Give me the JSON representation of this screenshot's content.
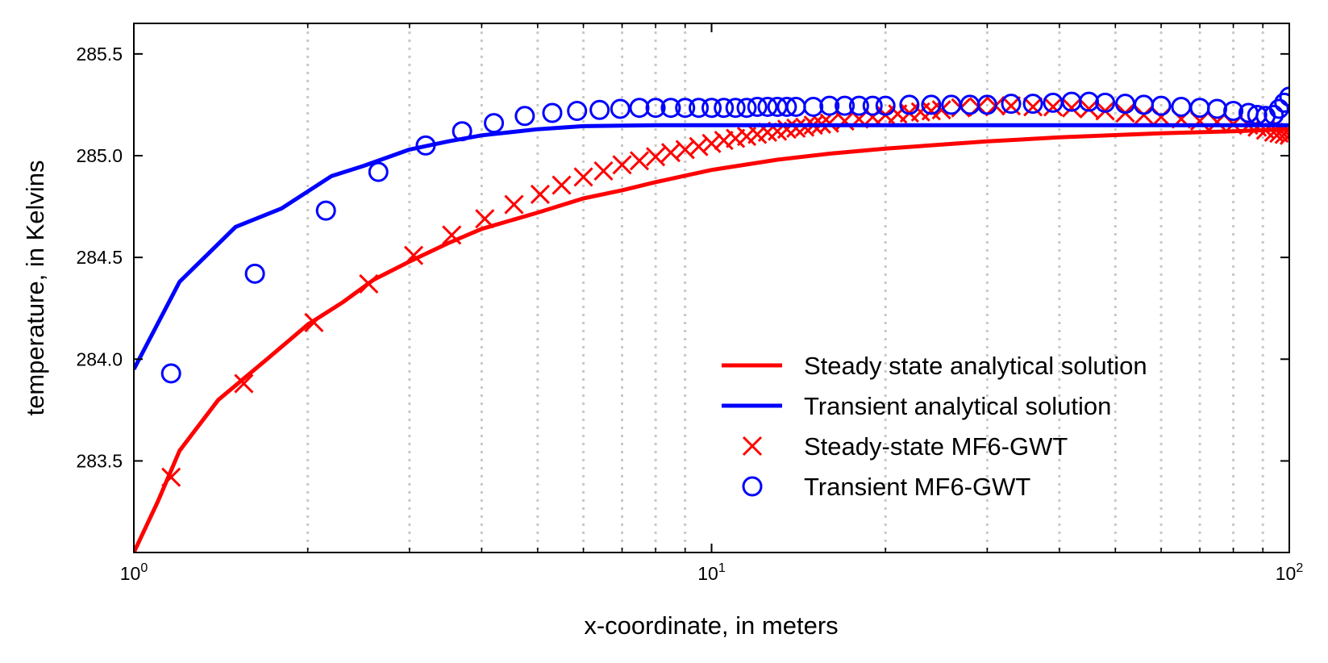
{
  "chart_data": {
    "type": "line",
    "xlabel": "x-coordinate, in meters",
    "ylabel": "temperature, in Kelvins",
    "xscale": "log",
    "xlim": [
      1,
      100
    ],
    "ylim": [
      283.05,
      285.65
    ],
    "grid": "vertical minor dotted",
    "legend_position": "lower-right",
    "x_ticks": [
      {
        "value": 1,
        "base": "10",
        "exp": "0"
      },
      {
        "value": 10,
        "base": "10",
        "exp": "1"
      },
      {
        "value": 100,
        "base": "10",
        "exp": "2"
      }
    ],
    "y_ticks": [
      {
        "value": 283.5,
        "label": "283.5"
      },
      {
        "value": 284.0,
        "label": "284.0"
      },
      {
        "value": 284.5,
        "label": "284.5"
      },
      {
        "value": 285.0,
        "label": "285.0"
      },
      {
        "value": 285.5,
        "label": "285.5"
      }
    ],
    "series": [
      {
        "name": "Steady state analytical solution",
        "kind": "line",
        "color": "#ff0000",
        "points": [
          [
            1.0,
            283.05
          ],
          [
            1.1,
            283.3
          ],
          [
            1.2,
            283.55
          ],
          [
            1.4,
            283.8
          ],
          [
            1.7,
            284.0
          ],
          [
            2.0,
            284.17
          ],
          [
            2.3,
            284.28
          ],
          [
            2.6,
            284.39
          ],
          [
            3.0,
            284.48
          ],
          [
            3.5,
            284.57
          ],
          [
            4.0,
            284.64
          ],
          [
            5.0,
            284.72
          ],
          [
            6.0,
            284.79
          ],
          [
            7.0,
            284.83
          ],
          [
            8.0,
            284.87
          ],
          [
            10.0,
            284.93
          ],
          [
            13.0,
            284.98
          ],
          [
            16.0,
            285.01
          ],
          [
            20.0,
            285.035
          ],
          [
            30.0,
            285.07
          ],
          [
            40.0,
            285.09
          ],
          [
            60.0,
            285.11
          ],
          [
            80.0,
            285.12
          ],
          [
            100.0,
            285.13
          ]
        ]
      },
      {
        "name": "Transient analytical solution",
        "kind": "line",
        "color": "#0000ff",
        "points": [
          [
            1.0,
            283.95
          ],
          [
            1.2,
            284.38
          ],
          [
            1.5,
            284.65
          ],
          [
            1.8,
            284.74
          ],
          [
            2.2,
            284.9
          ],
          [
            2.5,
            284.95
          ],
          [
            3.0,
            285.03
          ],
          [
            3.5,
            285.07
          ],
          [
            4.0,
            285.1
          ],
          [
            5.0,
            285.13
          ],
          [
            6.0,
            285.145
          ],
          [
            8.0,
            285.15
          ],
          [
            10.0,
            285.15
          ],
          [
            20.0,
            285.15
          ],
          [
            50.0,
            285.15
          ],
          [
            100.0,
            285.15
          ]
        ]
      },
      {
        "name": "Steady-state MF6-GWT",
        "kind": "scatter",
        "marker": "x",
        "color": "#ff0000",
        "points": [
          [
            1.16,
            283.42
          ],
          [
            1.55,
            283.88
          ],
          [
            2.05,
            284.18
          ],
          [
            2.55,
            284.37
          ],
          [
            3.05,
            284.51
          ],
          [
            3.55,
            284.61
          ],
          [
            4.05,
            284.69
          ],
          [
            4.55,
            284.76
          ],
          [
            5.05,
            284.81
          ],
          [
            5.5,
            284.855
          ],
          [
            6.0,
            284.895
          ],
          [
            6.5,
            284.925
          ],
          [
            7.0,
            284.955
          ],
          [
            7.5,
            284.975
          ],
          [
            8.0,
            284.995
          ],
          [
            8.5,
            285.015
          ],
          [
            9.0,
            285.03
          ],
          [
            9.5,
            285.045
          ],
          [
            10.0,
            285.06
          ],
          [
            10.5,
            285.075
          ],
          [
            11.0,
            285.085
          ],
          [
            11.5,
            285.095
          ],
          [
            12.0,
            285.105
          ],
          [
            12.5,
            285.115
          ],
          [
            13.0,
            285.12
          ],
          [
            13.5,
            285.13
          ],
          [
            14.0,
            285.135
          ],
          [
            14.5,
            285.14
          ],
          [
            15.0,
            285.15
          ],
          [
            15.5,
            285.155
          ],
          [
            16.0,
            285.16
          ],
          [
            17.0,
            285.17
          ],
          [
            18.0,
            285.18
          ],
          [
            19.0,
            285.19
          ],
          [
            20.0,
            285.2
          ],
          [
            21.0,
            285.205
          ],
          [
            22.0,
            285.21
          ],
          [
            23.0,
            285.215
          ],
          [
            24.0,
            285.22
          ],
          [
            25.0,
            285.225
          ],
          [
            27.0,
            285.235
          ],
          [
            29.0,
            285.24
          ],
          [
            31.0,
            285.245
          ],
          [
            33.0,
            285.245
          ],
          [
            36.0,
            285.24
          ],
          [
            39.0,
            285.24
          ],
          [
            42.0,
            285.235
          ],
          [
            45.0,
            285.23
          ],
          [
            48.0,
            285.22
          ],
          [
            52.0,
            285.21
          ],
          [
            56.0,
            285.2
          ],
          [
            60.0,
            285.19
          ],
          [
            65.0,
            285.18
          ],
          [
            70.0,
            285.17
          ],
          [
            75.0,
            285.165
          ],
          [
            80.0,
            285.155
          ],
          [
            85.0,
            285.15
          ],
          [
            88.0,
            285.14
          ],
          [
            91.0,
            285.125
          ],
          [
            94.0,
            285.115
          ],
          [
            96.0,
            285.11
          ],
          [
            98.0,
            285.105
          ],
          [
            100.0,
            285.1
          ]
        ]
      },
      {
        "name": "Transient MF6-GWT",
        "kind": "scatter",
        "marker": "o",
        "color": "#0000ff",
        "points": [
          [
            1.16,
            283.93
          ],
          [
            1.62,
            284.42
          ],
          [
            2.15,
            284.73
          ],
          [
            2.65,
            284.92
          ],
          [
            3.2,
            285.05
          ],
          [
            3.7,
            285.12
          ],
          [
            4.2,
            285.16
          ],
          [
            4.75,
            285.195
          ],
          [
            5.3,
            285.21
          ],
          [
            5.85,
            285.22
          ],
          [
            6.4,
            285.225
          ],
          [
            6.95,
            285.23
          ],
          [
            7.5,
            285.235
          ],
          [
            8.0,
            285.235
          ],
          [
            8.5,
            285.235
          ],
          [
            9.0,
            285.235
          ],
          [
            9.5,
            285.235
          ],
          [
            10.0,
            285.235
          ],
          [
            10.5,
            285.235
          ],
          [
            11.0,
            285.235
          ],
          [
            11.5,
            285.235
          ],
          [
            12.0,
            285.24
          ],
          [
            12.5,
            285.24
          ],
          [
            13.0,
            285.24
          ],
          [
            13.5,
            285.24
          ],
          [
            14.0,
            285.24
          ],
          [
            15.0,
            285.24
          ],
          [
            16.0,
            285.245
          ],
          [
            17.0,
            285.245
          ],
          [
            18.0,
            285.245
          ],
          [
            19.0,
            285.245
          ],
          [
            20.0,
            285.245
          ],
          [
            22.0,
            285.25
          ],
          [
            24.0,
            285.25
          ],
          [
            26.0,
            285.25
          ],
          [
            28.0,
            285.25
          ],
          [
            30.0,
            285.25
          ],
          [
            33.0,
            285.255
          ],
          [
            36.0,
            285.255
          ],
          [
            39.0,
            285.26
          ],
          [
            42.0,
            285.265
          ],
          [
            45.0,
            285.265
          ],
          [
            48.0,
            285.26
          ],
          [
            52.0,
            285.255
          ],
          [
            56.0,
            285.25
          ],
          [
            60.0,
            285.245
          ],
          [
            65.0,
            285.24
          ],
          [
            70.0,
            285.235
          ],
          [
            75.0,
            285.23
          ],
          [
            80.0,
            285.22
          ],
          [
            85.0,
            285.21
          ],
          [
            88.0,
            285.2
          ],
          [
            91.0,
            285.195
          ],
          [
            94.0,
            285.2
          ],
          [
            96.0,
            285.23
          ],
          [
            98.0,
            285.26
          ],
          [
            100.0,
            285.29
          ]
        ]
      }
    ]
  }
}
